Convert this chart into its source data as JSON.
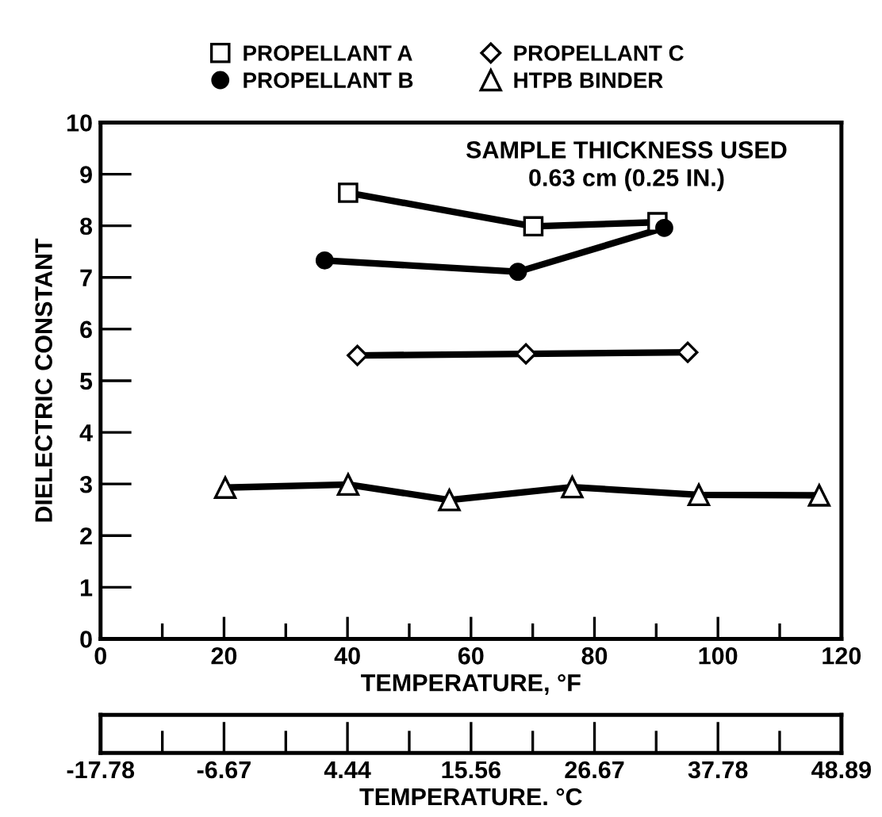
{
  "chart_data": {
    "type": "line",
    "xlabel": "TEMPERATURE, °F",
    "ylabel": "DIELECTRIC CONSTANT",
    "x2label": "TEMPERATURE. °C",
    "xlim": [
      0,
      120
    ],
    "xticks": [
      0,
      {
        "value": 10,
        "label": null
      },
      20,
      {
        "value": 30,
        "label": null
      },
      40,
      {
        "value": 50,
        "label": null
      },
      60,
      {
        "value": 70,
        "label": null
      },
      80,
      {
        "value": 90,
        "label": null
      },
      100,
      {
        "value": 110,
        "label": null
      },
      120
    ],
    "ylim": [
      0,
      10
    ],
    "yticks": [
      0,
      1,
      2,
      3,
      4,
      5,
      6,
      7,
      8,
      9,
      10
    ],
    "x2lim": [
      -17.78,
      48.89
    ],
    "x2ticks": [
      -17.78,
      {
        "value": -12.22,
        "label": null
      },
      -6.67,
      {
        "value": -1.11,
        "label": null
      },
      4.44,
      {
        "value": 10,
        "label": null
      },
      15.56,
      {
        "value": 21.11,
        "label": null
      },
      26.67,
      {
        "value": 32.22,
        "label": null
      },
      37.78,
      {
        "value": 43.33,
        "label": null
      },
      48.89
    ],
    "grid": false,
    "legend": "top",
    "line_style": "solid",
    "annotations": [
      "SAMPLE THICKNESS USED\n0.63 cm (0.25 IN.)"
    ],
    "series": [
      {
        "name": "PROPELLANT A",
        "color": "#000000",
        "marker": "square",
        "x": [
          40.1,
          70.1,
          90.2
        ],
        "values": [
          8.64,
          7.99,
          8.07
        ]
      },
      {
        "name": "PROPELLANT B",
        "color": "#000000",
        "marker": "circle",
        "x": [
          36.3,
          67.6,
          91.3
        ],
        "values": [
          7.33,
          7.11,
          7.96
        ]
      },
      {
        "name": "PROPELLANT C",
        "color": "#000000",
        "marker": "diamond",
        "x": [
          41.6,
          68.9,
          95.1
        ],
        "values": [
          5.49,
          5.52,
          5.55
        ]
      },
      {
        "name": "HTPB BINDER",
        "color": "#000000",
        "marker": "triangle",
        "x": [
          20.2,
          40.1,
          56.5,
          76.4,
          96.9,
          116.4
        ],
        "values": [
          2.93,
          2.99,
          2.69,
          2.94,
          2.79,
          2.78
        ]
      }
    ]
  }
}
